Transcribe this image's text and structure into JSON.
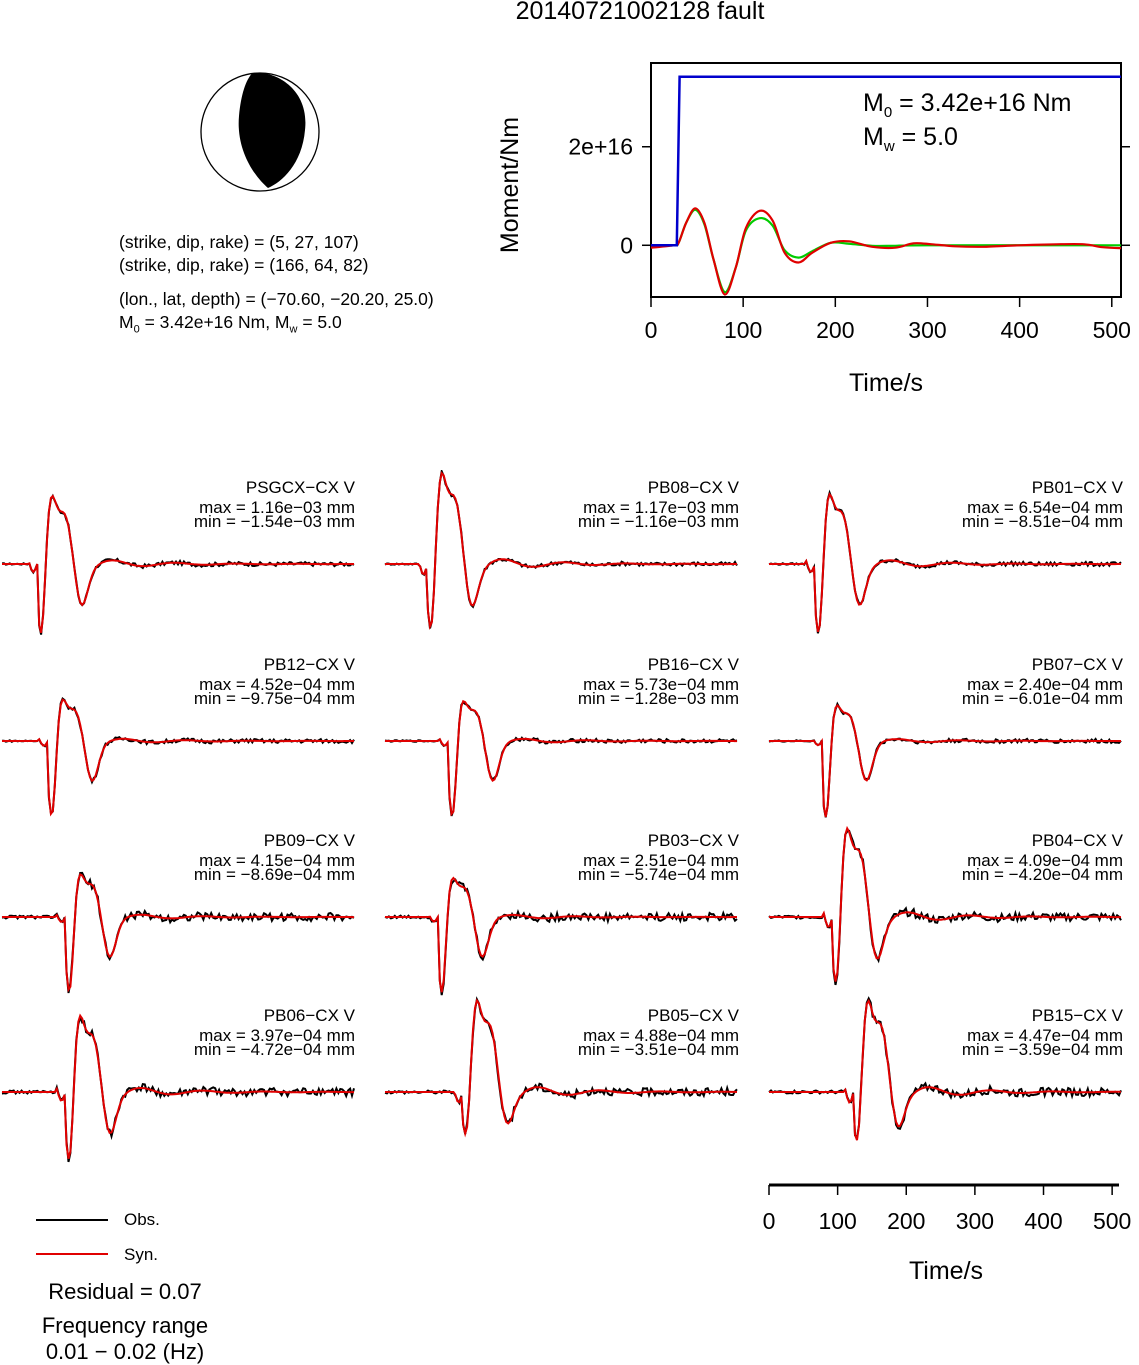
{
  "title": "20140721002128 fault",
  "mechanism": {
    "plane1": "(strike, dip, rake) = (5, 27, 107)",
    "plane2": "(strike, dip, rake) = (166, 64, 82)",
    "location": "(lon., lat, depth) = (−70.60, −20.20, 25.0)",
    "m0_prefix": "M",
    "m0_sub": "0",
    "m0_value": " = 3.42e+16 Nm, M",
    "mw_sub": "w",
    "mw_value": " = 5.0"
  },
  "colors": {
    "observed": "#000000",
    "synthetic": "#e00000",
    "moment_function": "#0000cc",
    "moment_rate": "#00cc00",
    "beachball_fill": "#000000"
  },
  "chart_data": [
    {
      "type": "line",
      "title": "",
      "xlabel": "Time/s",
      "ylabel": "Moment/Nm",
      "xlim": [
        0,
        510
      ],
      "ylim": [
        -1.05e+16,
        3.7e+16
      ],
      "x_ticks": [
        "0",
        "100",
        "200",
        "300",
        "400",
        "500"
      ],
      "y_ticks": [
        "0",
        "2e+16"
      ],
      "annotation_m0": "M0 = 3.42e+16 Nm",
      "annotation_mw": "Mw = 5.0",
      "annotation_m0_parts": [
        "M",
        "0",
        " = 3.42e+16 Nm"
      ],
      "annotation_mw_parts": [
        "M",
        "w",
        " = 5.0"
      ],
      "series": [
        {
          "role": "moment",
          "color": "#0000cc",
          "points": [
            [
              0,
              0
            ],
            [
              28,
              0
            ],
            [
              31,
              3.42e+16
            ],
            [
              510,
              3.42e+16
            ]
          ]
        },
        {
          "role": "moment_rate_syn",
          "color": "#e00000",
          "points": [
            [
              0,
              -500000000000000.0
            ],
            [
              25,
              0
            ],
            [
              30,
              500000000000000.0
            ],
            [
              38,
              4500000000000000.0
            ],
            [
              48,
              7500000000000000.0
            ],
            [
              58,
              4500000000000000.0
            ],
            [
              68,
              -3000000000000000.0
            ],
            [
              80,
              -1e+16
            ],
            [
              92,
              -4500000000000000.0
            ],
            [
              103,
              3500000000000000.0
            ],
            [
              118,
              7000000000000000.0
            ],
            [
              132,
              5000000000000000.0
            ],
            [
              145,
              -1500000000000000.0
            ],
            [
              160,
              -3500000000000000.0
            ],
            [
              175,
              -1500000000000000.0
            ],
            [
              195,
              500000000000000.0
            ],
            [
              215,
              800000000000000.0
            ],
            [
              240,
              -300000000000000.0
            ],
            [
              265,
              -500000000000000.0
            ],
            [
              285,
              400000000000000.0
            ],
            [
              305,
              200000000000000.0
            ],
            [
              330,
              -200000000000000.0
            ],
            [
              360,
              -300000000000000.0
            ],
            [
              400,
              0.0
            ],
            [
              440,
              200000000000000.0
            ],
            [
              470,
              200000000000000.0
            ],
            [
              490,
              -400000000000000.0
            ],
            [
              510,
              -600000000000000.0
            ]
          ]
        },
        {
          "role": "moment_rate_fit",
          "color": "#00cc00",
          "points": [
            [
              0,
              0
            ],
            [
              25,
              0
            ],
            [
              30,
              500000000000000.0
            ],
            [
              38,
              4500000000000000.0
            ],
            [
              48,
              7200000000000000.0
            ],
            [
              58,
              4200000000000000.0
            ],
            [
              68,
              -3000000000000000.0
            ],
            [
              80,
              -9500000000000000.0
            ],
            [
              92,
              -4500000000000000.0
            ],
            [
              103,
              3000000000000000.0
            ],
            [
              118,
              5500000000000000.0
            ],
            [
              132,
              4000000000000000.0
            ],
            [
              145,
              -1000000000000000.0
            ],
            [
              160,
              -2500000000000000.0
            ],
            [
              175,
              -1200000000000000.0
            ],
            [
              195,
              500000000000000.0
            ],
            [
              215,
              300000000000000.0
            ],
            [
              240,
              -100000000000000.0
            ],
            [
              265,
              -100000000000000.0
            ],
            [
              300,
              0.0
            ],
            [
              510,
              0.0
            ]
          ]
        }
      ]
    },
    {
      "type": "line",
      "title": "Waveform fits",
      "xlabel": "Time/s",
      "xlim": [
        0,
        510
      ],
      "x_ticks": [
        "0",
        "100",
        "200",
        "300",
        "400",
        "500"
      ],
      "legend": [
        "Obs.",
        "Syn."
      ],
      "residual": "Residual = 0.07",
      "frequency_range_label": "Frequency range",
      "frequency_range_value": "0.01 − 0.02 (Hz)",
      "stations": [
        {
          "name": "PSGCX−CX V",
          "max": "max = 1.16e−03 mm",
          "min": "min = −1.54e−03 mm",
          "amp_pos": 1.16,
          "amp_neg": 1.54
        },
        {
          "name": "PB08−CX V",
          "max": "max = 1.17e−03 mm",
          "min": "min = −1.16e−03 mm",
          "amp_pos": 1.17,
          "amp_neg": 1.16
        },
        {
          "name": "PB01−CX V",
          "max": "max = 6.54e−04 mm",
          "min": "min = −8.51e−04 mm",
          "amp_pos": 0.654,
          "amp_neg": 0.851
        },
        {
          "name": "PB12−CX V",
          "max": "max = 4.52e−04 mm",
          "min": "min = −9.75e−04 mm",
          "amp_pos": 0.452,
          "amp_neg": 0.975
        },
        {
          "name": "PB16−CX V",
          "max": "max = 5.73e−04 mm",
          "min": "min = −1.28e−03 mm",
          "amp_pos": 0.573,
          "amp_neg": 1.28
        },
        {
          "name": "PB07−CX V",
          "max": "max = 2.40e−04 mm",
          "min": "min = −6.01e−04 mm",
          "amp_pos": 0.24,
          "amp_neg": 0.601
        },
        {
          "name": "PB09−CX V",
          "max": "max = 4.15e−04 mm",
          "min": "min = −8.69e−04 mm",
          "amp_pos": 0.415,
          "amp_neg": 0.869
        },
        {
          "name": "PB03−CX V",
          "max": "max = 2.51e−04 mm",
          "min": "min = −5.74e−04 mm",
          "amp_pos": 0.251,
          "amp_neg": 0.574
        },
        {
          "name": "PB04−CX V",
          "max": "max = 4.09e−04 mm",
          "min": "min = −4.20e−04 mm",
          "amp_pos": 0.409,
          "amp_neg": 0.42
        },
        {
          "name": "PB06−CX V",
          "max": "max = 3.97e−04 mm",
          "min": "min = −4.72e−04 mm",
          "amp_pos": 0.397,
          "amp_neg": 0.472
        },
        {
          "name": "PB05−CX V",
          "max": "max = 4.88e−04 mm",
          "min": "min = −3.51e−04 mm",
          "amp_pos": 0.488,
          "amp_neg": 0.351
        },
        {
          "name": "PB15−CX V",
          "max": "max = 4.47e−04 mm",
          "min": "min = −3.59e−04 mm",
          "amp_pos": 0.447,
          "amp_neg": 0.359
        }
      ]
    }
  ]
}
